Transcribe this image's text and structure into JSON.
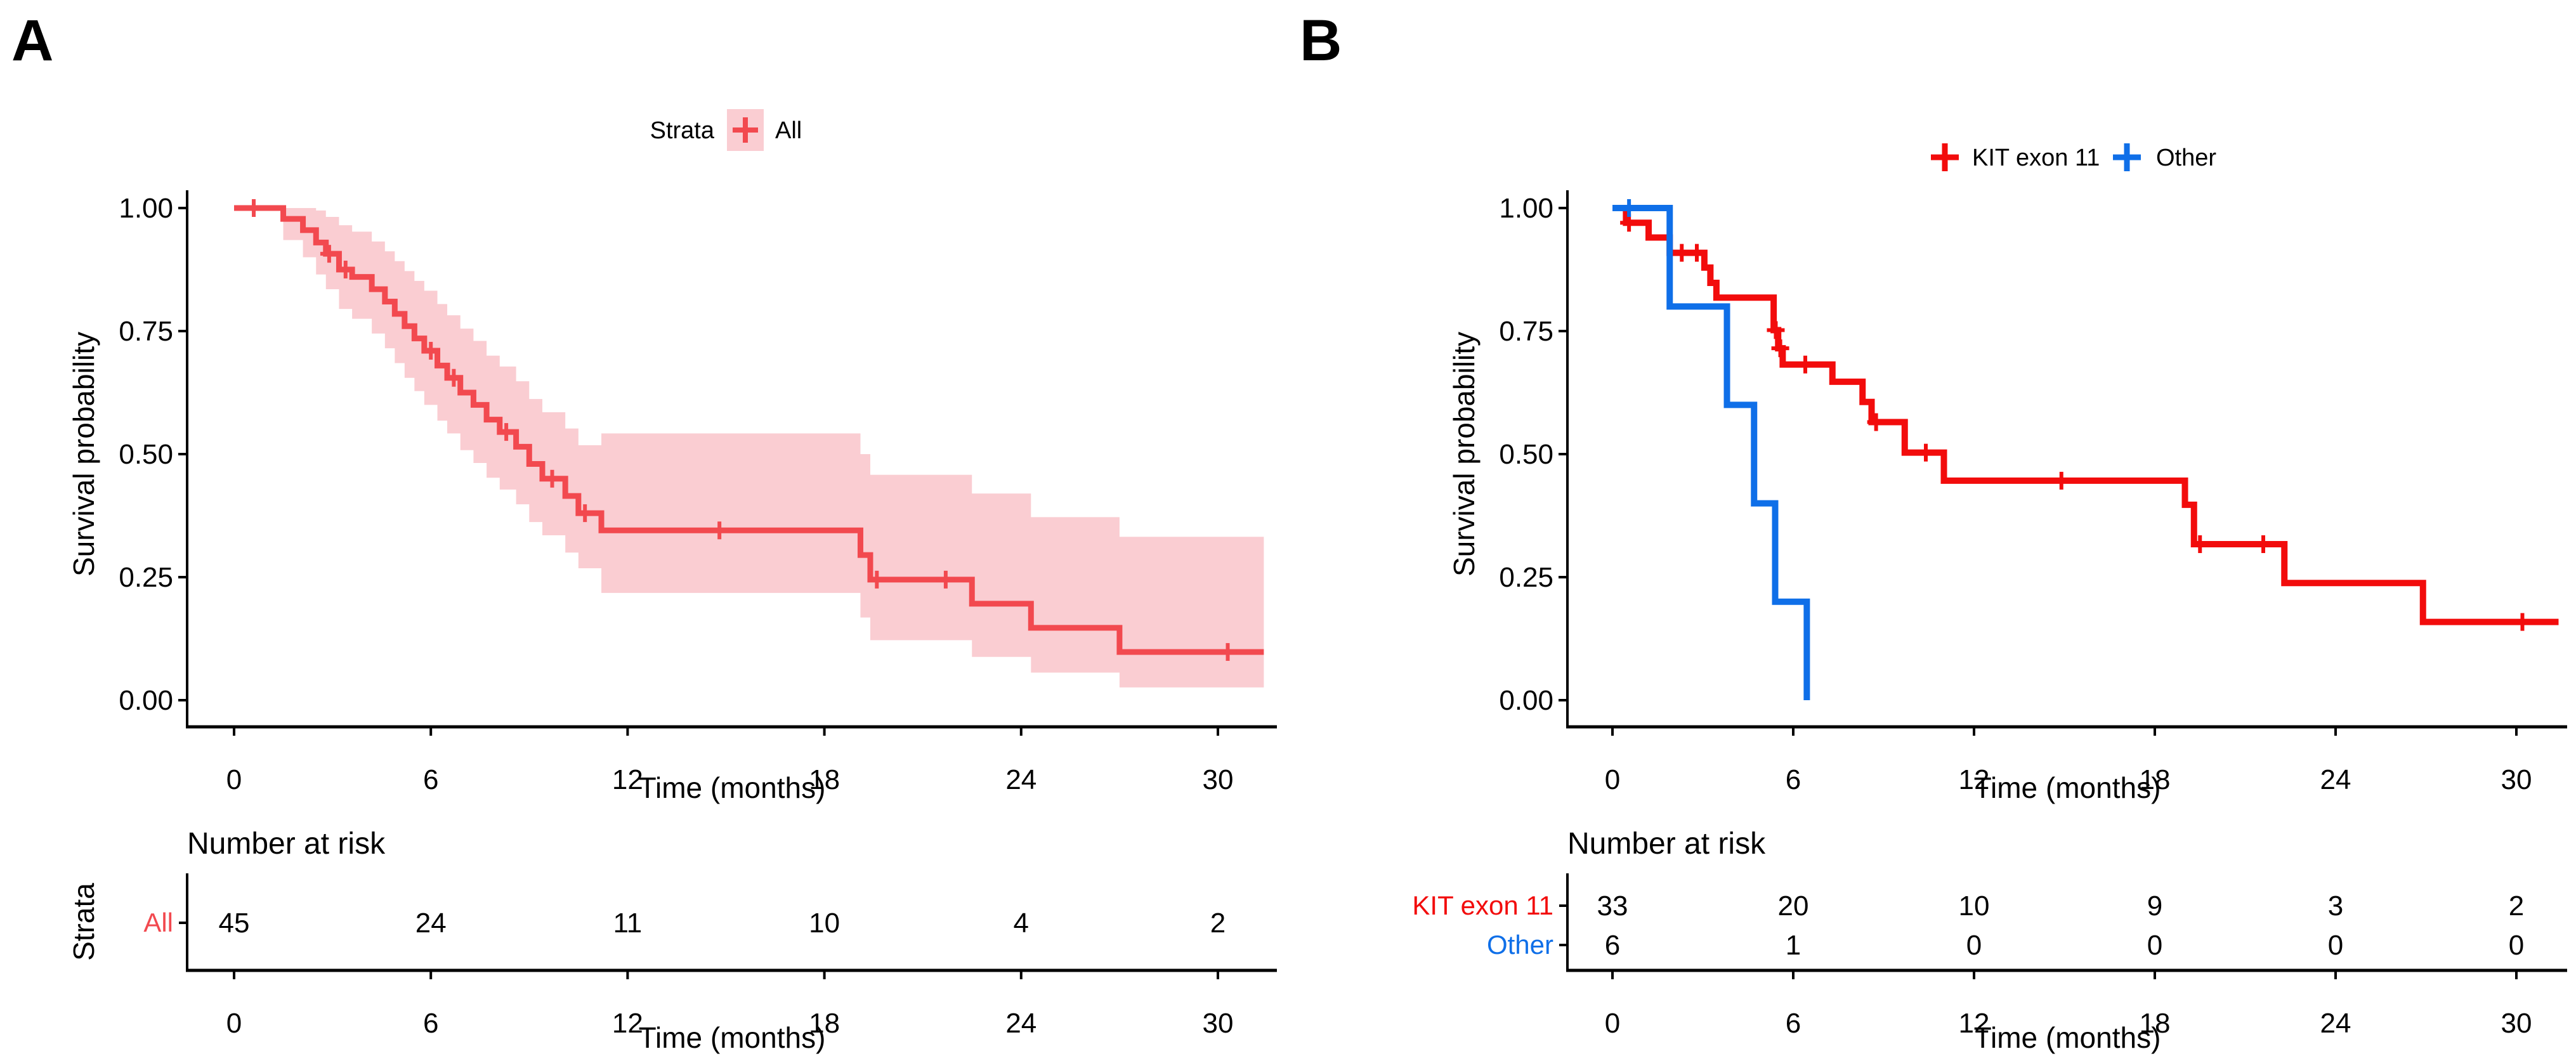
{
  "figure": {
    "background": "#FFFFFF",
    "black": "#000000"
  },
  "chart_data": [
    {
      "id": "panel-a",
      "panel_label": "A",
      "type": "line",
      "subtype": "kaplan-meier-step-with-ci-ribbon",
      "xlabel": "Time (months)",
      "ylabel": "Survival probability",
      "xlim": [
        0,
        31.5
      ],
      "ylim": [
        0,
        1
      ],
      "x_ticks": [
        0,
        6,
        12,
        18,
        24,
        30
      ],
      "y_ticks": [
        0.0,
        0.25,
        0.5,
        0.75,
        1.0
      ],
      "y_tick_labels": [
        "0.00",
        "0.25",
        "0.50",
        "0.75",
        "1.00"
      ],
      "grid": false,
      "legend": {
        "position": "top",
        "title": "Strata",
        "items": [
          {
            "label": "All",
            "color": "#F2494F",
            "swatch_fill": "#FACDD2",
            "marker": "plus"
          }
        ]
      },
      "series": [
        {
          "name": "All",
          "color": "#F2494F",
          "line_width": 9,
          "t_end": 31.4,
          "steps": [
            [
              0,
              1.0
            ],
            [
              1.5,
              0.978
            ],
            [
              2.1,
              0.955
            ],
            [
              2.5,
              0.93
            ],
            [
              2.8,
              0.907
            ],
            [
              3.2,
              0.875
            ],
            [
              3.6,
              0.86
            ],
            [
              4.2,
              0.835
            ],
            [
              4.6,
              0.81
            ],
            [
              4.9,
              0.785
            ],
            [
              5.2,
              0.76
            ],
            [
              5.5,
              0.735
            ],
            [
              5.8,
              0.71
            ],
            [
              6.2,
              0.68
            ],
            [
              6.5,
              0.655
            ],
            [
              6.9,
              0.625
            ],
            [
              7.3,
              0.6
            ],
            [
              7.7,
              0.57
            ],
            [
              8.1,
              0.545
            ],
            [
              8.6,
              0.515
            ],
            [
              9.0,
              0.48
            ],
            [
              9.4,
              0.45
            ],
            [
              10.1,
              0.415
            ],
            [
              10.5,
              0.38
            ],
            [
              11.2,
              0.345
            ],
            [
              19.1,
              0.295
            ],
            [
              19.4,
              0.245
            ],
            [
              22.5,
              0.196
            ],
            [
              24.3,
              0.147
            ],
            [
              27.0,
              0.098
            ]
          ],
          "censors": [
            [
              0.6,
              1.0
            ],
            [
              2.9,
              0.907
            ],
            [
              3.4,
              0.875
            ],
            [
              6.0,
              0.71
            ],
            [
              6.7,
              0.655
            ],
            [
              8.3,
              0.545
            ],
            [
              9.7,
              0.45
            ],
            [
              10.7,
              0.38
            ],
            [
              14.8,
              0.345
            ],
            [
              19.6,
              0.245
            ],
            [
              21.7,
              0.245
            ],
            [
              30.3,
              0.098
            ]
          ],
          "ribbon_color": "#FACDD2",
          "ribbon": [
            [
              0,
              1.0,
              1.0
            ],
            [
              1.5,
              0.935,
              1.0
            ],
            [
              2.1,
              0.9,
              1.0
            ],
            [
              2.5,
              0.865,
              0.995
            ],
            [
              2.8,
              0.835,
              0.982
            ],
            [
              3.2,
              0.795,
              0.965
            ],
            [
              3.6,
              0.775,
              0.952
            ],
            [
              4.2,
              0.745,
              0.932
            ],
            [
              4.6,
              0.715,
              0.912
            ],
            [
              4.9,
              0.685,
              0.892
            ],
            [
              5.2,
              0.655,
              0.872
            ],
            [
              5.5,
              0.628,
              0.852
            ],
            [
              5.8,
              0.6,
              0.832
            ],
            [
              6.2,
              0.568,
              0.805
            ],
            [
              6.5,
              0.542,
              0.782
            ],
            [
              6.9,
              0.508,
              0.755
            ],
            [
              7.3,
              0.482,
              0.73
            ],
            [
              7.7,
              0.452,
              0.7
            ],
            [
              8.1,
              0.428,
              0.678
            ],
            [
              8.6,
              0.398,
              0.648
            ],
            [
              9.0,
              0.362,
              0.612
            ],
            [
              9.4,
              0.335,
              0.585
            ],
            [
              10.1,
              0.3,
              0.552
            ],
            [
              10.5,
              0.268,
              0.518
            ],
            [
              11.2,
              0.218,
              0.542
            ],
            [
              19.1,
              0.168,
              0.5
            ],
            [
              19.4,
              0.122,
              0.458
            ],
            [
              22.5,
              0.088,
              0.42
            ],
            [
              24.3,
              0.056,
              0.372
            ],
            [
              27.0,
              0.026,
              0.332
            ]
          ]
        }
      ],
      "risk_table": {
        "title": "Number at risk",
        "axis_title": "Strata",
        "xlabel": "Time (months)",
        "times": [
          0,
          6,
          12,
          18,
          24,
          30
        ],
        "rows": [
          {
            "label": "All",
            "color": "#F2494F",
            "values": [
              "45",
              "24",
              "11",
              "10",
              "4",
              "2"
            ]
          }
        ]
      }
    },
    {
      "id": "panel-b",
      "panel_label": "B",
      "type": "line",
      "subtype": "kaplan-meier-step",
      "xlabel": "Time (months)",
      "ylabel": "Survival probability",
      "xlim": [
        0,
        31.5
      ],
      "ylim": [
        0,
        1
      ],
      "x_ticks": [
        0,
        6,
        12,
        18,
        24,
        30
      ],
      "y_ticks": [
        0.0,
        0.25,
        0.5,
        0.75,
        1.0
      ],
      "y_tick_labels": [
        "0.00",
        "0.25",
        "0.50",
        "0.75",
        "1.00"
      ],
      "grid": false,
      "legend": {
        "position": "top",
        "title": "",
        "items": [
          {
            "label": "KIT exon 11",
            "color": "#F20C0C",
            "marker": "plus"
          },
          {
            "label": "Other",
            "color": "#0F6FE8",
            "marker": "plus"
          }
        ]
      },
      "series": [
        {
          "name": "KIT exon 11",
          "color": "#F20C0C",
          "line_width": 10,
          "t_end": 31.4,
          "steps": [
            [
              0,
              1.0
            ],
            [
              0.45,
              0.97
            ],
            [
              1.2,
              0.94
            ],
            [
              1.9,
              0.909
            ],
            [
              3.05,
              0.879
            ],
            [
              3.25,
              0.848
            ],
            [
              3.45,
              0.818
            ],
            [
              5.35,
              0.752
            ],
            [
              5.5,
              0.715
            ],
            [
              5.65,
              0.682
            ],
            [
              7.3,
              0.647
            ],
            [
              8.3,
              0.606
            ],
            [
              8.6,
              0.565
            ],
            [
              9.7,
              0.503
            ],
            [
              11.0,
              0.446
            ],
            [
              19.0,
              0.397
            ],
            [
              19.3,
              0.317
            ],
            [
              22.3,
              0.238
            ],
            [
              26.9,
              0.159
            ]
          ],
          "censors": [
            [
              0.55,
              0.97
            ],
            [
              2.3,
              0.909
            ],
            [
              2.8,
              0.909
            ],
            [
              5.42,
              0.752
            ],
            [
              5.57,
              0.715
            ],
            [
              6.4,
              0.682
            ],
            [
              8.75,
              0.565
            ],
            [
              10.4,
              0.503
            ],
            [
              14.9,
              0.446
            ],
            [
              19.5,
              0.317
            ],
            [
              21.6,
              0.317
            ],
            [
              30.2,
              0.159
            ]
          ]
        },
        {
          "name": "Other",
          "color": "#0F6FE8",
          "line_width": 10,
          "t_end": 6.45,
          "steps": [
            [
              0,
              1.0
            ],
            [
              1.9,
              0.8
            ],
            [
              3.8,
              0.6
            ],
            [
              4.7,
              0.4
            ],
            [
              5.4,
              0.2
            ],
            [
              6.45,
              0.0
            ]
          ],
          "censors": [
            [
              0.55,
              1.0
            ]
          ]
        }
      ],
      "risk_table": {
        "title": "Number at risk",
        "axis_title": "",
        "xlabel": "Time (months)",
        "times": [
          0,
          6,
          12,
          18,
          24,
          30
        ],
        "rows": [
          {
            "label": "KIT exon 11",
            "color": "#F20C0C",
            "values": [
              "33",
              "20",
              "10",
              "9",
              "3",
              "2"
            ]
          },
          {
            "label": "Other",
            "color": "#0F6FE8",
            "values": [
              "6",
              "1",
              "0",
              "0",
              "0",
              "0"
            ]
          }
        ]
      }
    }
  ]
}
